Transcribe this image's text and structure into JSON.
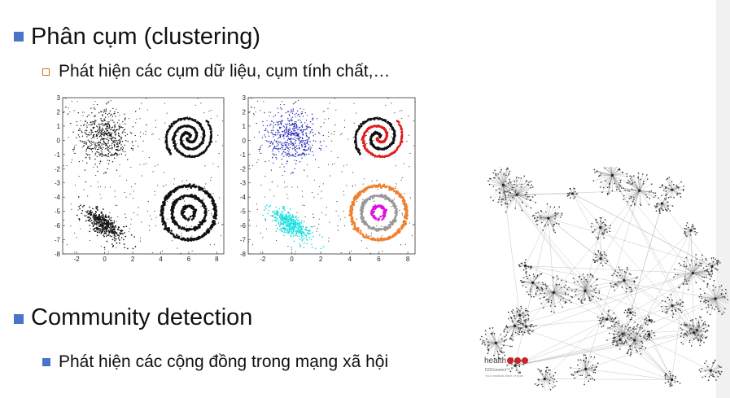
{
  "bullets": {
    "clustering_title": "Phân cụm (clustering)",
    "clustering_sub": "Phát hiện các cụm dữ liệu, cụm tính chất,…",
    "community_title": "Community detection",
    "community_sub": "Phát hiện các cộng đồng trong mạng xã hội"
  },
  "plots": {
    "x_ticks": [
      "-2",
      "0",
      "2",
      "4",
      "6",
      "8"
    ],
    "y_ticks": [
      "3",
      "2",
      "1",
      "0",
      "-1",
      "-2",
      "-3",
      "-4",
      "-5",
      "-6",
      "-7",
      "-8"
    ]
  },
  "colors": {
    "bullet": "#4a74c9",
    "sub_bullet": "#c97a1a",
    "cluster_blue": "#2222bb",
    "cluster_cyan": "#18e0e0",
    "cluster_red": "#e01c1c",
    "cluster_gray": "#999999",
    "cluster_magenta": "#e010e0",
    "cluster_orange": "#f08030"
  },
  "logo": {
    "word": "health",
    "line1": "DOConnect™",
    "line2": "Your medical circle of trust"
  }
}
